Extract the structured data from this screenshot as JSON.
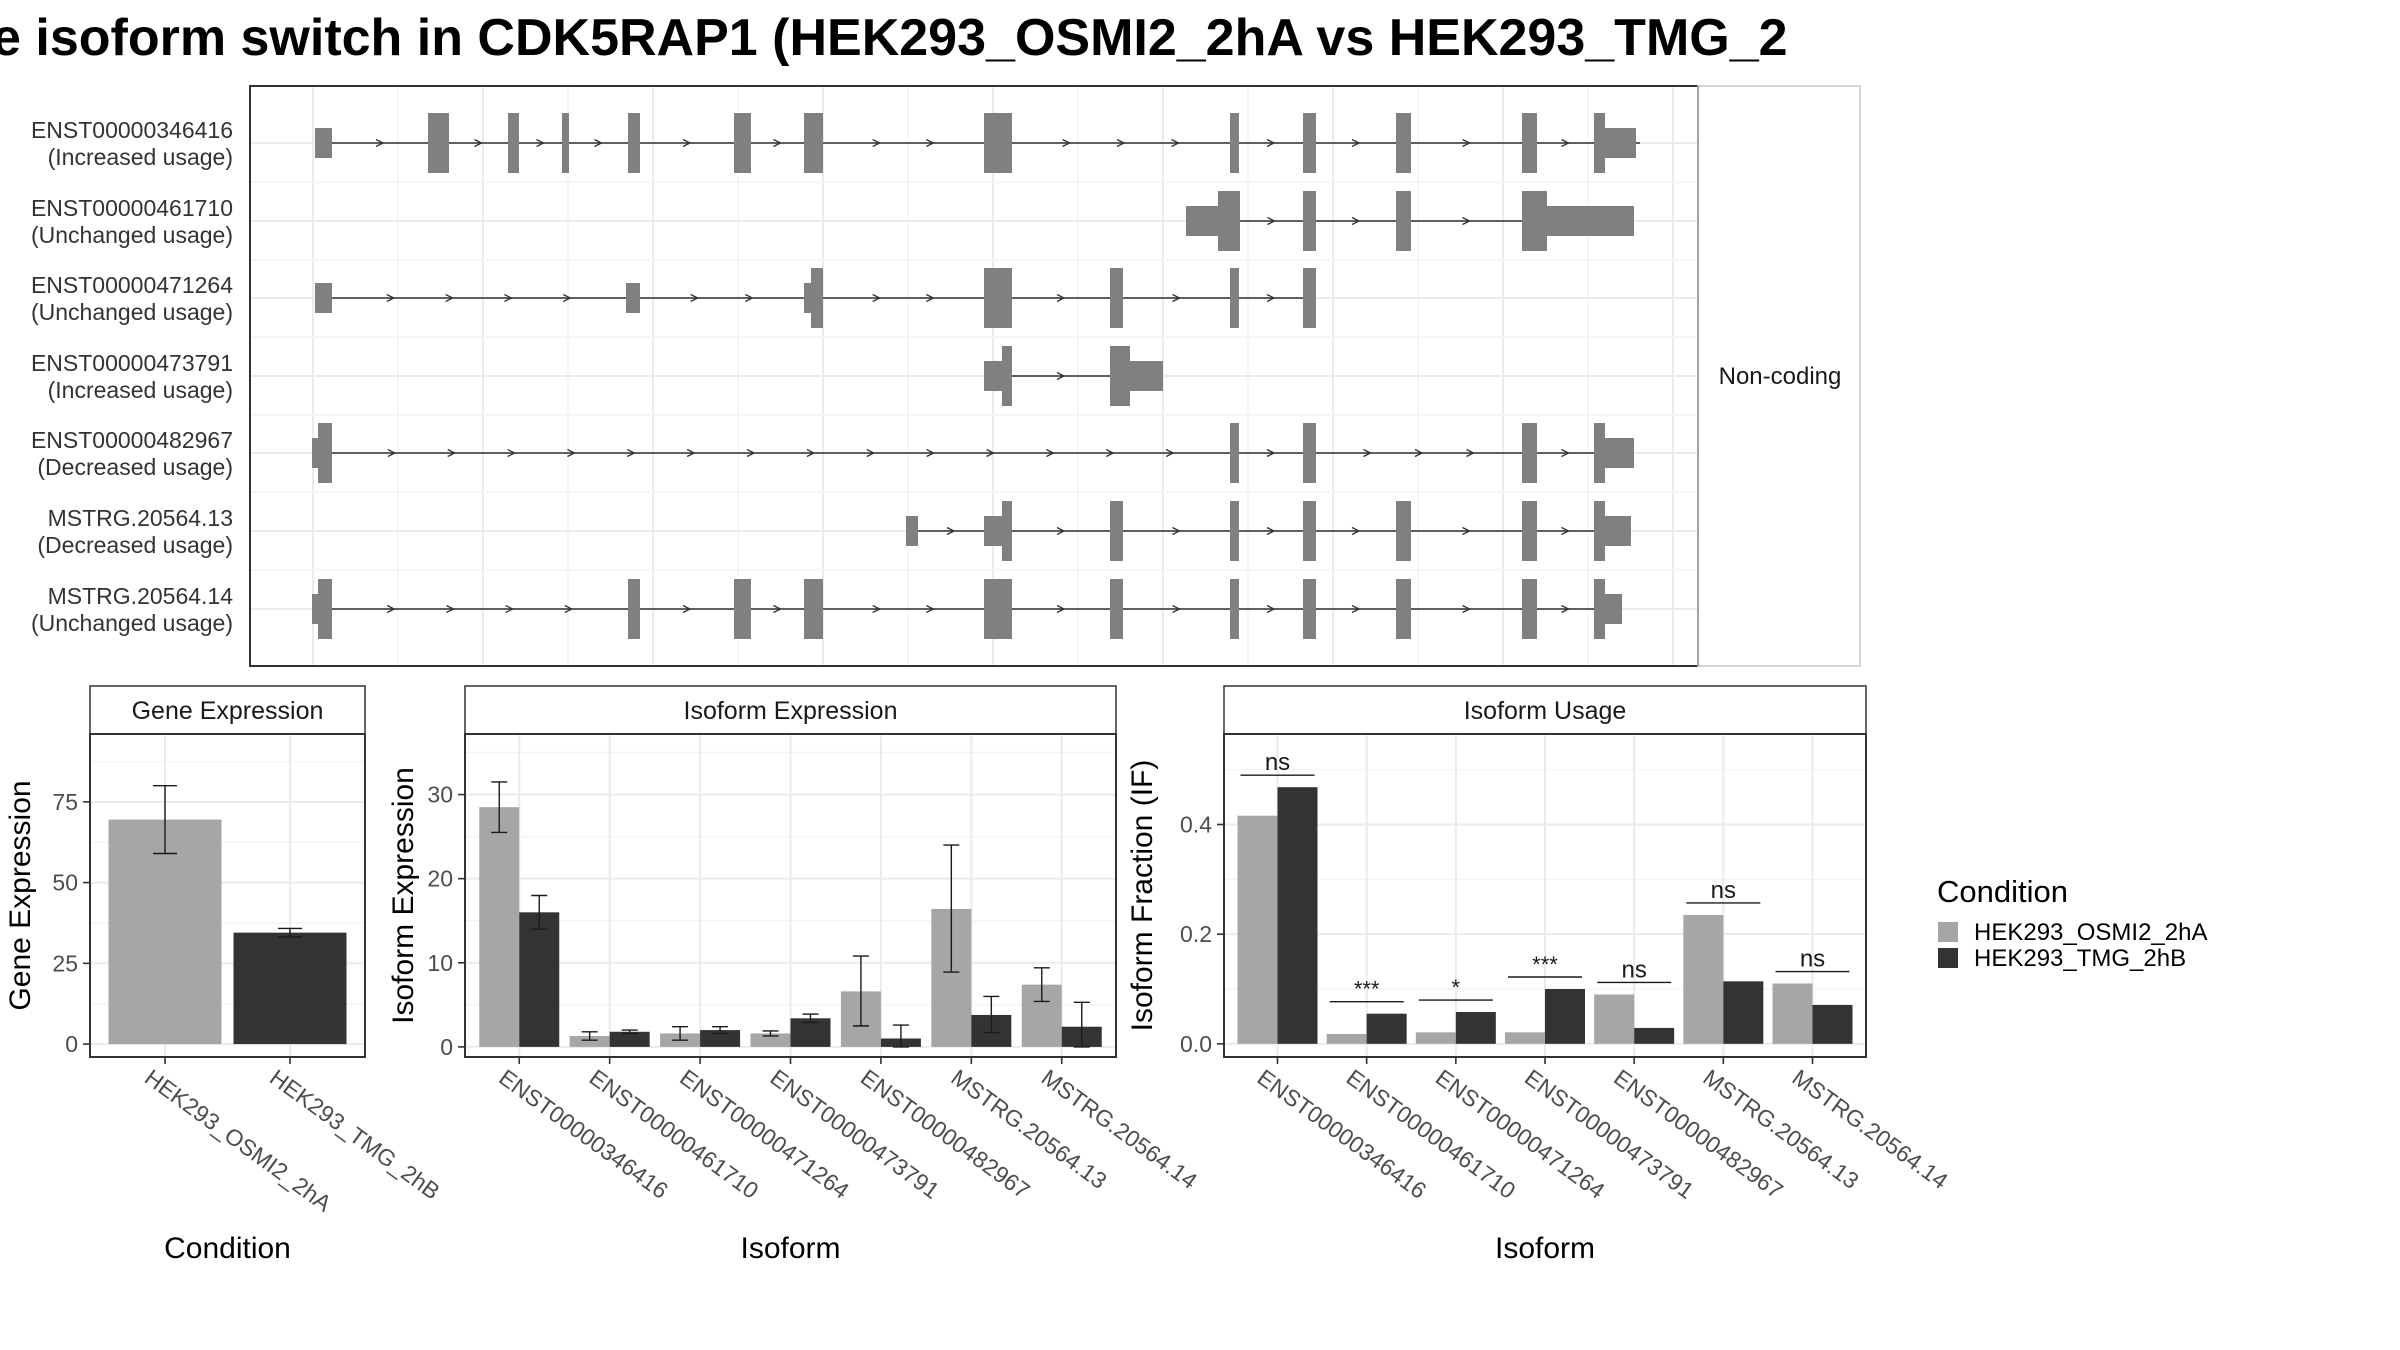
{
  "title": "e isoform switch in CDK5RAP1 (HEK293_OSMI2_2hA vs HEK293_TMG_2",
  "structure": {
    "side_label": "Non-coding",
    "transcripts": [
      {
        "id": "ENST00000346416",
        "usage": "(Increased usage)"
      },
      {
        "id": "ENST00000461710",
        "usage": "(Unchanged usage)"
      },
      {
        "id": "ENST00000471264",
        "usage": "(Unchanged usage)"
      },
      {
        "id": "ENST00000473791",
        "usage": "(Increased usage)"
      },
      {
        "id": "ENST00000482967",
        "usage": "(Decreased usage)"
      },
      {
        "id": "MSTRG.20564.13",
        "usage": "(Decreased usage)"
      },
      {
        "id": "MSTRG.20564.14",
        "usage": "(Unchanged usage)"
      }
    ]
  },
  "chart_data": [
    {
      "type": "bar",
      "title": "Gene Expression",
      "xlabel": "Condition",
      "ylabel": "Gene Expression",
      "categories": [
        "HEK293_OSMI2_2hA",
        "HEK293_TMG_2hB"
      ],
      "values": [
        69.5,
        34.5
      ],
      "errors": [
        [
          59,
          80
        ],
        [
          33.2,
          35.8
        ]
      ],
      "yticks": [
        "0",
        "25",
        "50",
        "75"
      ],
      "ylim": [
        -4,
        96
      ],
      "colors": [
        "#a6a6a6",
        "#333333"
      ]
    },
    {
      "type": "bar",
      "title": "Isoform Expression",
      "xlabel": "Isoform",
      "ylabel": "Isoform Expression",
      "categories": [
        "ENST00000346416",
        "ENST00000461710",
        "ENST00000471264",
        "ENST00000473791",
        "ENST00000482967",
        "MSTRG.20564.13",
        "MSTRG.20564.14"
      ],
      "yticks": [
        "0",
        "10",
        "20",
        "30"
      ],
      "ylim": [
        -1.2,
        37.2
      ],
      "series": [
        {
          "name": "HEK293_OSMI2_2hA",
          "color": "#a6a6a6",
          "values": [
            28.5,
            1.3,
            1.6,
            1.6,
            6.6,
            16.4,
            7.4
          ],
          "errors": [
            [
              25.5,
              31.5
            ],
            [
              0.8,
              1.8
            ],
            [
              0.8,
              2.4
            ],
            [
              1.3,
              1.9
            ],
            [
              2.5,
              10.8
            ],
            [
              8.9,
              24.0
            ],
            [
              5.4,
              9.4
            ]
          ]
        },
        {
          "name": "HEK293_TMG_2hB",
          "color": "#333333",
          "values": [
            16.0,
            1.8,
            2.0,
            3.4,
            1.0,
            3.8,
            2.4
          ],
          "errors": [
            [
              14.0,
              18.0
            ],
            [
              1.6,
              2.0
            ],
            [
              1.6,
              2.4
            ],
            [
              2.9,
              3.9
            ],
            [
              0.0,
              2.6
            ],
            [
              1.7,
              6.0
            ],
            [
              0.0,
              5.3
            ]
          ]
        }
      ]
    },
    {
      "type": "bar",
      "title": "Isoform Usage",
      "xlabel": "Isoform",
      "ylabel": "Isoform Fraction (IF)",
      "categories": [
        "ENST00000346416",
        "ENST00000461710",
        "ENST00000471264",
        "ENST00000473791",
        "ENST00000482967",
        "MSTRG.20564.13",
        "MSTRG.20564.14"
      ],
      "yticks": [
        "0.0",
        "0.2",
        "0.4"
      ],
      "ylim": [
        -0.024,
        0.565
      ],
      "series": [
        {
          "name": "HEK293_OSMI2_2hA",
          "color": "#a6a6a6",
          "values": [
            0.416,
            0.018,
            0.021,
            0.021,
            0.09,
            0.235,
            0.11
          ]
        },
        {
          "name": "HEK293_TMG_2hB",
          "color": "#333333",
          "values": [
            0.468,
            0.055,
            0.058,
            0.1,
            0.029,
            0.114,
            0.071
          ]
        }
      ],
      "significance": [
        "ns",
        "***",
        "*",
        "***",
        "ns",
        "ns",
        "ns"
      ]
    }
  ],
  "legend": {
    "title": "Condition",
    "items": [
      {
        "label": "HEK293_OSMI2_2hA",
        "color": "#a6a6a6"
      },
      {
        "label": "HEK293_TMG_2hB",
        "color": "#333333"
      }
    ]
  }
}
